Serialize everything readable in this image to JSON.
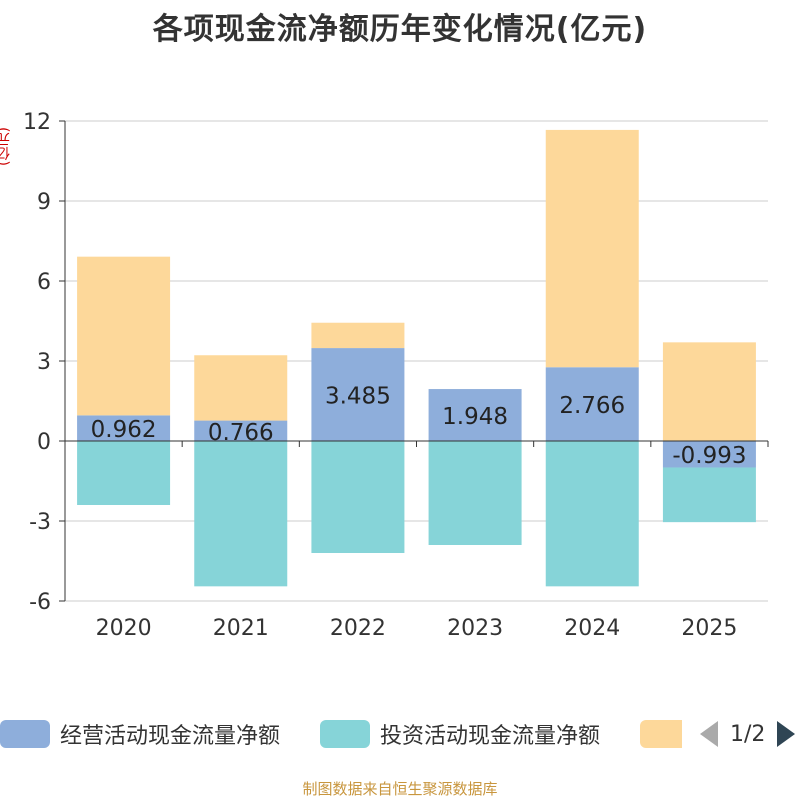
{
  "title": "各项现金流净额历年变化情况(亿元)",
  "y_unit": "(亿元)",
  "source_text": "制图数据来自恒生聚源数据库",
  "legend": {
    "items": [
      {
        "label": "经营活动现金流量净额",
        "color": "#8eaedb"
      },
      {
        "label": "投资活动现金流量净额",
        "color": "#86d4d8"
      },
      {
        "label": "",
        "color": "#fdd89a"
      }
    ],
    "page_text": "1/2"
  },
  "chart_data": {
    "type": "bar",
    "stacked": true,
    "title": "各项现金流净额历年变化情况(亿元)",
    "ylabel": "(亿元)",
    "categories": [
      "2020",
      "2021",
      "2022",
      "2023",
      "2024",
      "2025"
    ],
    "ylim": [
      -6,
      12
    ],
    "yticks": [
      -6,
      -3,
      0,
      3,
      6,
      9,
      12
    ],
    "series": [
      {
        "name": "经营活动现金流量净额",
        "color": "#8eaedb",
        "values": [
          0.962,
          0.766,
          3.485,
          1.948,
          2.766,
          -0.993
        ],
        "labels": [
          "0.962",
          "0.766",
          "3.485",
          "1.948",
          "2.766",
          "-0.993"
        ]
      },
      {
        "name": "投资活动现金流量净额",
        "color": "#86d4d8",
        "values": [
          -2.4,
          -5.45,
          -4.2,
          -3.9,
          -5.45,
          -2.05
        ]
      },
      {
        "name": "",
        "color": "#fdd89a",
        "values": [
          5.95,
          2.45,
          0.95,
          0,
          8.9,
          3.7
        ]
      }
    ]
  }
}
